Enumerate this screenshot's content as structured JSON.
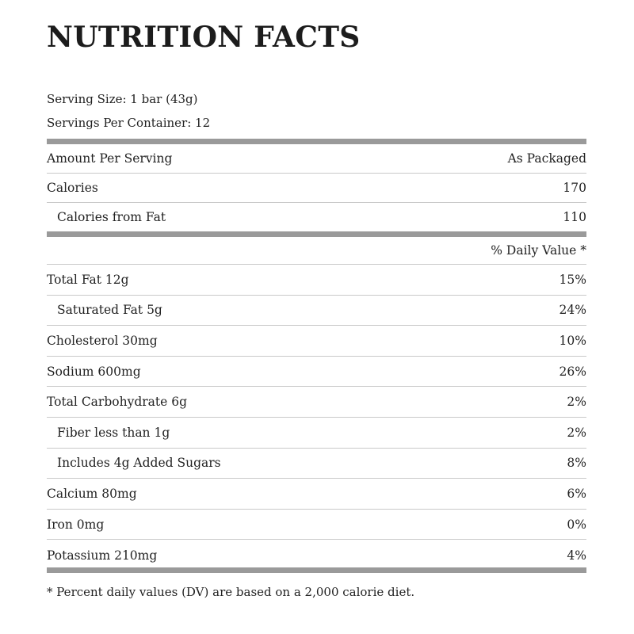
{
  "title": "NUTRITION FACTS",
  "serving_size": "Serving Size: 1 bar (43g)",
  "servings_per_container": "Servings Per Container: 12",
  "header_row": {
    "left": "Amount Per Serving",
    "right": "As Packaged"
  },
  "calories": {
    "label": "Calories",
    "value": "170"
  },
  "calories_from_fat": {
    "label": "Calories from Fat",
    "value": "110"
  },
  "daily_value_header": "% Daily Value *",
  "nutrients": [
    {
      "label": "Total Fat 12g",
      "value": "15%",
      "indent": false
    },
    {
      "label": "Saturated Fat 5g",
      "value": "24%",
      "indent": true
    },
    {
      "label": "Cholesterol 30mg",
      "value": "10%",
      "indent": false
    },
    {
      "label": "Sodium 600mg",
      "value": "26%",
      "indent": false
    },
    {
      "label": "Total Carbohydrate 6g",
      "value": "2%",
      "indent": false
    },
    {
      "label": "Fiber less than 1g",
      "value": "2%",
      "indent": true
    },
    {
      "label": "Includes 4g Added Sugars",
      "value": "8%",
      "indent": true
    },
    {
      "label": "Calcium 80mg",
      "value": "6%",
      "indent": false
    },
    {
      "label": "Iron 0mg",
      "value": "0%",
      "indent": false
    },
    {
      "label": "Potassium 210mg",
      "value": "4%",
      "indent": false
    }
  ],
  "footnote": "* Percent daily values (DV) are based on a 2,000 calorie diet."
}
